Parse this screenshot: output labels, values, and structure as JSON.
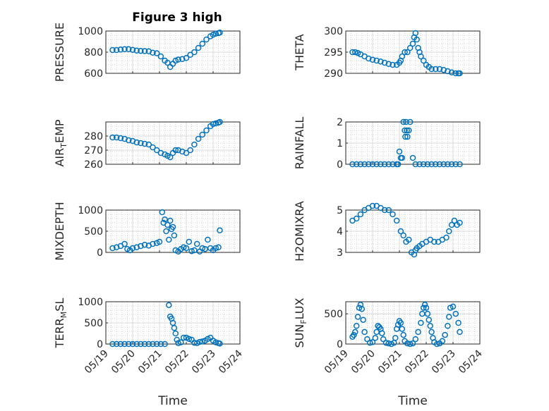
{
  "figure": {
    "title": "Figure 3 high",
    "marker_color": "#0072BD",
    "axis_color": "#262626",
    "grid_color": "#c8c8c8",
    "x_tick_labels": [
      "05/19",
      "05/20",
      "05/21",
      "05/22",
      "05/23",
      "05/24"
    ],
    "x_label": "Time"
  },
  "chart_data": [
    {
      "type": "scatter",
      "name": "pressure",
      "ylabel": "PRESSURE",
      "xlim": [
        0,
        5
      ],
      "ylim": [
        600,
        1000
      ],
      "yticks": [
        600,
        800,
        1000
      ],
      "ytick_labels": [
        "600",
        "800",
        "1000"
      ],
      "show_x_ticklabels": false,
      "title": "Figure 3 high",
      "grid": true,
      "x": [
        0.25,
        0.4,
        0.55,
        0.7,
        0.85,
        1.0,
        1.15,
        1.3,
        1.45,
        1.6,
        1.75,
        1.9,
        2.05,
        2.2,
        2.3,
        2.4,
        2.5,
        2.6,
        2.7,
        2.85,
        3.0,
        3.15,
        3.3,
        3.45,
        3.6,
        3.75,
        3.9,
        4.0,
        4.1,
        4.2,
        4.25
      ],
      "y": [
        820,
        820,
        825,
        828,
        828,
        822,
        815,
        812,
        810,
        808,
        795,
        790,
        760,
        720,
        700,
        660,
        690,
        720,
        730,
        735,
        745,
        775,
        800,
        840,
        880,
        920,
        950,
        965,
        975,
        980,
        985
      ]
    },
    {
      "type": "scatter",
      "name": "theta",
      "ylabel": "THETA",
      "xlim": [
        0,
        5
      ],
      "ylim": [
        290,
        300
      ],
      "yticks": [
        290,
        295,
        300
      ],
      "ytick_labels": [
        "290",
        "295",
        "300"
      ],
      "show_x_ticklabels": false,
      "grid": true,
      "x": [
        0.25,
        0.35,
        0.45,
        0.55,
        0.7,
        0.85,
        1.0,
        1.15,
        1.3,
        1.45,
        1.6,
        1.75,
        1.9,
        2.0,
        2.05,
        2.1,
        2.2,
        2.3,
        2.4,
        2.5,
        2.55,
        2.6,
        2.65,
        2.7,
        2.75,
        2.8,
        2.9,
        3.0,
        3.1,
        3.2,
        3.35,
        3.5,
        3.65,
        3.8,
        3.95,
        4.1,
        4.2,
        4.25
      ],
      "y": [
        295,
        295,
        294.8,
        294.5,
        294,
        293.5,
        293.2,
        293,
        292.8,
        292.5,
        292.2,
        292,
        292,
        292.5,
        293,
        294,
        295,
        295,
        296,
        297,
        298.5,
        299.5,
        298,
        296,
        295,
        294,
        293,
        292,
        291.5,
        291,
        291,
        291,
        290.8,
        290.5,
        290.2,
        290,
        290,
        290
      ]
    },
    {
      "type": "scatter",
      "name": "air_temp",
      "ylabel": "AIR_TEMP",
      "xlim": [
        0,
        5
      ],
      "ylim": [
        260,
        290
      ],
      "yticks": [
        260,
        270,
        280
      ],
      "ytick_labels": [
        "260",
        "270",
        "280"
      ],
      "show_x_ticklabels": false,
      "grid": true,
      "x": [
        0.25,
        0.4,
        0.55,
        0.7,
        0.85,
        1.0,
        1.15,
        1.3,
        1.45,
        1.6,
        1.75,
        1.9,
        2.05,
        2.2,
        2.3,
        2.4,
        2.5,
        2.6,
        2.7,
        2.85,
        3.0,
        3.15,
        3.3,
        3.45,
        3.6,
        3.75,
        3.9,
        4.0,
        4.1,
        4.2,
        4.25
      ],
      "y": [
        279,
        279,
        278.5,
        278,
        277,
        276.5,
        275.5,
        275,
        274.5,
        274,
        272,
        270,
        268,
        267,
        266,
        265,
        268,
        270,
        270,
        269,
        268,
        270,
        274,
        278,
        281,
        284,
        287,
        288.5,
        289,
        289.5,
        290
      ]
    },
    {
      "type": "scatter",
      "name": "rainfall",
      "ylabel": "RAINFALL",
      "xlim": [
        0,
        5
      ],
      "ylim": [
        0,
        2
      ],
      "yticks": [
        0,
        1,
        2
      ],
      "ytick_labels": [
        "0",
        "1",
        "2"
      ],
      "show_x_ticklabels": false,
      "grid": true,
      "x": [
        0.25,
        0.4,
        0.55,
        0.7,
        0.85,
        1.0,
        1.15,
        1.3,
        1.45,
        1.6,
        1.75,
        1.9,
        1.95,
        2.0,
        2.05,
        2.1,
        2.15,
        2.2,
        2.22,
        2.25,
        2.28,
        2.3,
        2.35,
        2.4,
        2.5,
        2.6,
        2.75,
        2.9,
        3.05,
        3.2,
        3.35,
        3.5,
        3.65,
        3.8,
        3.95,
        4.1,
        4.25
      ],
      "y": [
        0,
        0,
        0,
        0,
        0,
        0,
        0,
        0,
        0,
        0,
        0,
        0,
        0,
        0.6,
        0.3,
        0.3,
        2.0,
        1.6,
        1.3,
        2.0,
        1.6,
        1.3,
        1.6,
        2.0,
        0.3,
        0,
        0,
        0,
        0,
        0,
        0,
        0,
        0,
        0,
        0,
        0,
        0
      ]
    },
    {
      "type": "scatter",
      "name": "mixdepth",
      "ylabel": "MIXDEPTH",
      "xlim": [
        0,
        5
      ],
      "ylim": [
        0,
        1000
      ],
      "yticks": [
        0,
        500,
        1000
      ],
      "ytick_labels": [
        "0",
        "500",
        "1000"
      ],
      "show_x_ticklabels": false,
      "grid": true,
      "x": [
        0.25,
        0.4,
        0.55,
        0.7,
        0.8,
        0.9,
        1.0,
        1.15,
        1.3,
        1.45,
        1.6,
        1.75,
        1.9,
        2.0,
        2.1,
        2.15,
        2.2,
        2.25,
        2.3,
        2.35,
        2.4,
        2.45,
        2.5,
        2.55,
        2.6,
        2.7,
        2.8,
        2.9,
        3.0,
        3.1,
        3.2,
        3.3,
        3.4,
        3.5,
        3.6,
        3.7,
        3.8,
        3.9,
        4.0,
        4.1,
        4.2,
        4.25
      ],
      "y": [
        100,
        120,
        150,
        200,
        80,
        50,
        100,
        120,
        150,
        180,
        160,
        200,
        220,
        250,
        950,
        700,
        780,
        500,
        650,
        300,
        750,
        550,
        600,
        400,
        50,
        20,
        80,
        120,
        100,
        250,
        30,
        50,
        200,
        20,
        100,
        80,
        300,
        100,
        50,
        100,
        120,
        520
      ]
    },
    {
      "type": "scatter",
      "name": "h2omixra",
      "ylabel": "H2OMIXRA",
      "xlim": [
        0,
        5
      ],
      "ylim": [
        3,
        5
      ],
      "yticks": [
        3,
        4,
        5
      ],
      "ytick_labels": [
        "3",
        "4",
        "5"
      ],
      "show_x_ticklabels": false,
      "grid": true,
      "x": [
        0.25,
        0.4,
        0.55,
        0.7,
        0.85,
        1.0,
        1.15,
        1.3,
        1.45,
        1.6,
        1.75,
        1.9,
        2.05,
        2.15,
        2.25,
        2.35,
        2.45,
        2.55,
        2.6,
        2.65,
        2.75,
        2.85,
        3.0,
        3.15,
        3.3,
        3.45,
        3.6,
        3.75,
        3.85,
        3.95,
        4.05,
        4.15,
        4.25
      ],
      "y": [
        4.5,
        4.6,
        4.8,
        5.0,
        5.1,
        5.2,
        5.2,
        5.1,
        5.0,
        5.0,
        4.8,
        4.5,
        4.0,
        3.8,
        3.5,
        3.6,
        3.0,
        2.9,
        3.1,
        3.2,
        3.3,
        3.4,
        3.5,
        3.6,
        3.5,
        3.5,
        3.6,
        3.7,
        4.0,
        4.3,
        4.5,
        4.3,
        4.4
      ]
    },
    {
      "type": "scatter",
      "name": "terr_msl",
      "ylabel": "TERR_MSL",
      "xlim": [
        0,
        5
      ],
      "ylim": [
        0,
        1000
      ],
      "yticks": [
        0,
        500,
        1000
      ],
      "ytick_labels": [
        "0",
        "500",
        "1000"
      ],
      "show_x_ticklabels": true,
      "xlabel": "Time",
      "grid": true,
      "x": [
        0.25,
        0.4,
        0.55,
        0.7,
        0.85,
        1.0,
        1.15,
        1.3,
        1.45,
        1.6,
        1.75,
        1.9,
        2.05,
        2.2,
        2.35,
        2.4,
        2.45,
        2.5,
        2.55,
        2.6,
        2.65,
        2.7,
        2.8,
        2.9,
        3.0,
        3.1,
        3.2,
        3.3,
        3.4,
        3.5,
        3.6,
        3.7,
        3.8,
        3.9,
        4.0,
        4.1,
        4.2,
        4.25
      ],
      "y": [
        0,
        0,
        0,
        0,
        0,
        0,
        0,
        0,
        0,
        0,
        0,
        0,
        0,
        0,
        920,
        650,
        600,
        500,
        380,
        250,
        100,
        20,
        40,
        150,
        150,
        120,
        100,
        30,
        20,
        50,
        60,
        80,
        120,
        150,
        80,
        40,
        20,
        10
      ]
    },
    {
      "type": "scatter",
      "name": "sun_flux",
      "ylabel": "SUN_FLUX",
      "xlim": [
        0,
        5
      ],
      "ylim": [
        0,
        700
      ],
      "yticks": [
        0,
        500
      ],
      "ytick_labels": [
        "0",
        "500"
      ],
      "show_x_ticklabels": true,
      "xlabel": "Time",
      "grid": true,
      "x": [
        0.25,
        0.3,
        0.35,
        0.4,
        0.45,
        0.5,
        0.55,
        0.6,
        0.65,
        0.7,
        0.8,
        0.9,
        1.0,
        1.1,
        1.15,
        1.2,
        1.25,
        1.3,
        1.35,
        1.4,
        1.5,
        1.6,
        1.7,
        1.8,
        1.85,
        1.9,
        1.95,
        2.0,
        2.05,
        2.1,
        2.15,
        2.2,
        2.3,
        2.4,
        2.5,
        2.6,
        2.7,
        2.8,
        2.85,
        2.9,
        2.95,
        3.0,
        3.05,
        3.1,
        3.15,
        3.2,
        3.25,
        3.3,
        3.4,
        3.5,
        3.6,
        3.7,
        3.8,
        3.85,
        3.9,
        4.0,
        4.1,
        4.2,
        4.25
      ],
      "y": [
        120,
        150,
        200,
        300,
        450,
        600,
        650,
        580,
        400,
        200,
        80,
        20,
        30,
        100,
        200,
        300,
        280,
        250,
        180,
        80,
        20,
        10,
        0,
        20,
        100,
        250,
        320,
        380,
        350,
        250,
        150,
        50,
        10,
        0,
        10,
        80,
        200,
        350,
        500,
        600,
        650,
        600,
        500,
        400,
        300,
        200,
        100,
        30,
        0,
        10,
        50,
        150,
        300,
        450,
        600,
        620,
        500,
        350,
        200
      ]
    }
  ]
}
